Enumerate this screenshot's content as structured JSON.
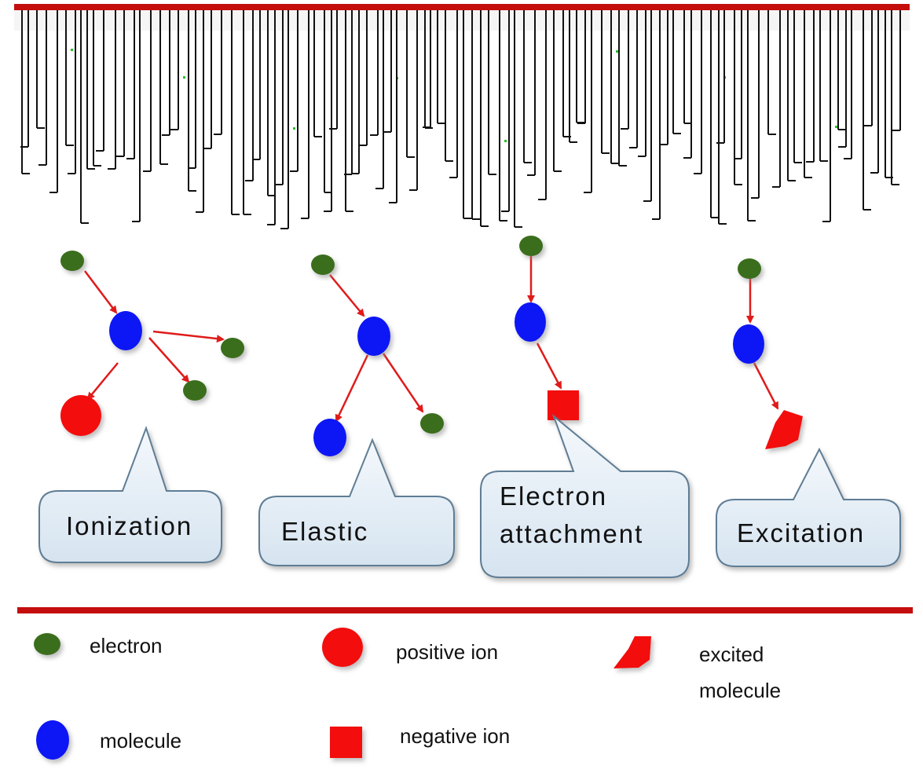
{
  "colors": {
    "electron": "#3a6e1c",
    "molecule": "#0a14f5",
    "positive_ion": "#f31111",
    "negative_ion": "#f31111",
    "excited_molecule": "#f31111",
    "arrow": "#e01b1b",
    "divider": "#c40e0e",
    "callout_fill": "#e3edf6",
    "callout_stroke": "#5f7d95"
  },
  "icons": {
    "electron": "green-dot-icon",
    "molecule": "blue-ellipse-icon",
    "positive_ion": "red-circle-icon",
    "negative_ion": "red-square-icon",
    "excited_molecule": "red-irregular-shape-icon"
  },
  "processes": [
    {
      "id": "ionization",
      "label": [
        "Ionization"
      ]
    },
    {
      "id": "elastic",
      "label": [
        "Elastic"
      ]
    },
    {
      "id": "electron-attachment",
      "label": [
        "Electron",
        "attachment"
      ]
    },
    {
      "id": "excitation",
      "label": [
        "Excitation"
      ]
    }
  ],
  "legend": {
    "electron": [
      "electron"
    ],
    "positive_ion": [
      "positive ion"
    ],
    "excited_molecule": [
      "excited",
      "molecule"
    ],
    "molecule": [
      "molecule"
    ],
    "negative_ion": [
      "negative ion"
    ]
  }
}
